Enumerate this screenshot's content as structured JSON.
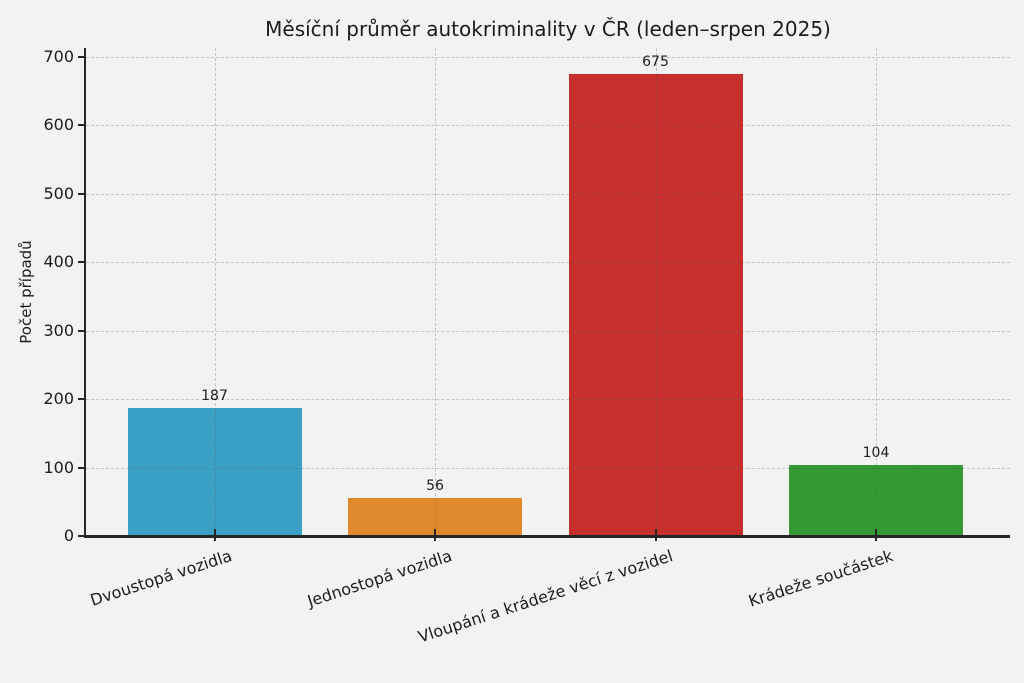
{
  "chart_data": {
    "type": "bar",
    "title": "Měsíční průměr autokriminality v ČR (leden–srpen 2025)",
    "xlabel": "",
    "ylabel": "Počet případů",
    "categories": [
      "Dvoustopá vozidla",
      "Jednostopá vozidla",
      "Vloupání a krádeže věcí z vozidel",
      "Krádeže součástek"
    ],
    "values": [
      187,
      56,
      675,
      104
    ],
    "value_labels": [
      "187",
      "56",
      "675",
      "104"
    ],
    "bar_colors": [
      "#3aa0c6",
      "#e0882c",
      "#c62f2e",
      "#339a33"
    ],
    "yticks": [
      0,
      100,
      200,
      300,
      400,
      500,
      600,
      700
    ],
    "ylim": [
      0,
      709
    ],
    "grid": {
      "visible": true,
      "axis": "both",
      "line_style": "dashed"
    },
    "legend": null
  },
  "style": {
    "figure_background": "#f2f2f1",
    "axis_color": "#262626",
    "text_color": "#1c1c1c",
    "grid_color": "rgba(90,90,90,0.30)"
  }
}
